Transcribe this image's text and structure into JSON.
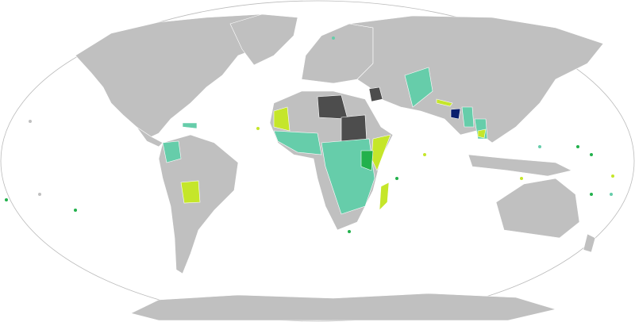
{
  "map": {
    "projection": "world-oval",
    "colors": {
      "ocean": "#ffffff",
      "outline": "#bbbbbb",
      "land_default": "#c0c0c0",
      "category_teal": "#66cdaa",
      "category_lime": "#c5e62a",
      "category_green": "#22b14c",
      "category_dark": "#4d4d4d",
      "category_navy": "#0a1f6e"
    }
  }
}
